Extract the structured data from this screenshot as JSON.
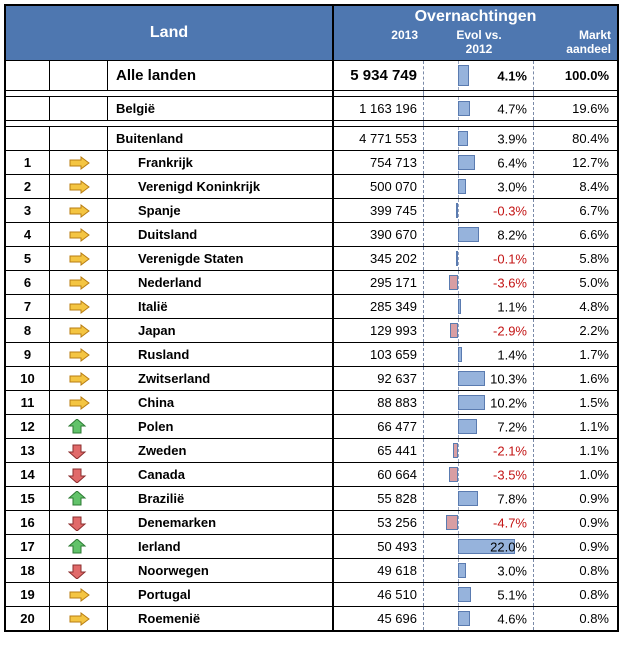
{
  "header": {
    "land": "Land",
    "over_title": "Overnachtingen",
    "col2013": "2013",
    "colEvol_line1": "Evol vs.",
    "colEvol_line2": "2012",
    "colMkt_line1": "Markt",
    "colMkt_line2": "aandeel"
  },
  "evolAxis": {
    "centerPx": 34,
    "pxPerPct": 2.6
  },
  "summary": [
    {
      "name": "Alle landen",
      "v2013": "5 934 749",
      "evol": 4.1,
      "mkt": "100.0%",
      "bold": true,
      "tall": true
    },
    {
      "name": "België",
      "v2013": "1 163 196",
      "evol": 4.7,
      "mkt": "19.6%"
    },
    {
      "name": "Buitenland",
      "v2013": "4 771 553",
      "evol": 3.9,
      "mkt": "80.4%"
    }
  ],
  "rows": [
    {
      "rank": 1,
      "trend": "same",
      "name": "Frankrijk",
      "v2013": "754 713",
      "evol": 6.4,
      "mkt": "12.7%"
    },
    {
      "rank": 2,
      "trend": "same",
      "name": "Verenigd Koninkrijk",
      "v2013": "500 070",
      "evol": 3.0,
      "mkt": "8.4%"
    },
    {
      "rank": 3,
      "trend": "same",
      "name": "Spanje",
      "v2013": "399 745",
      "evol": -0.3,
      "mkt": "6.7%"
    },
    {
      "rank": 4,
      "trend": "same",
      "name": "Duitsland",
      "v2013": "390 670",
      "evol": 8.2,
      "mkt": "6.6%"
    },
    {
      "rank": 5,
      "trend": "same",
      "name": "Verenigde Staten",
      "v2013": "345 202",
      "evol": -0.1,
      "mkt": "5.8%"
    },
    {
      "rank": 6,
      "trend": "same",
      "name": "Nederland",
      "v2013": "295 171",
      "evol": -3.6,
      "mkt": "5.0%"
    },
    {
      "rank": 7,
      "trend": "same",
      "name": "Italië",
      "v2013": "285 349",
      "evol": 1.1,
      "mkt": "4.8%"
    },
    {
      "rank": 8,
      "trend": "same",
      "name": "Japan",
      "v2013": "129 993",
      "evol": -2.9,
      "mkt": "2.2%"
    },
    {
      "rank": 9,
      "trend": "same",
      "name": "Rusland",
      "v2013": "103 659",
      "evol": 1.4,
      "mkt": "1.7%"
    },
    {
      "rank": 10,
      "trend": "same",
      "name": "Zwitserland",
      "v2013": "92 637",
      "evol": 10.3,
      "mkt": "1.6%"
    },
    {
      "rank": 11,
      "trend": "same",
      "name": "China",
      "v2013": "88 883",
      "evol": 10.2,
      "mkt": "1.5%"
    },
    {
      "rank": 12,
      "trend": "up",
      "name": "Polen",
      "v2013": "66 477",
      "evol": 7.2,
      "mkt": "1.1%"
    },
    {
      "rank": 13,
      "trend": "down",
      "name": "Zweden",
      "v2013": "65 441",
      "evol": -2.1,
      "mkt": "1.1%"
    },
    {
      "rank": 14,
      "trend": "down",
      "name": "Canada",
      "v2013": "60 664",
      "evol": -3.5,
      "mkt": "1.0%"
    },
    {
      "rank": 15,
      "trend": "up",
      "name": "Brazilië",
      "v2013": "55 828",
      "evol": 7.8,
      "mkt": "0.9%"
    },
    {
      "rank": 16,
      "trend": "down",
      "name": "Denemarken",
      "v2013": "53 256",
      "evol": -4.7,
      "mkt": "0.9%"
    },
    {
      "rank": 17,
      "trend": "up",
      "name": "Ierland",
      "v2013": "50 493",
      "evol": 22.0,
      "mkt": "0.9%"
    },
    {
      "rank": 18,
      "trend": "down",
      "name": "Noorwegen",
      "v2013": "49 618",
      "evol": 3.0,
      "mkt": "0.8%"
    },
    {
      "rank": 19,
      "trend": "same",
      "name": "Portugal",
      "v2013": "46 510",
      "evol": 5.1,
      "mkt": "0.8%"
    },
    {
      "rank": 20,
      "trend": "same",
      "name": "Roemenië",
      "v2013": "45 696",
      "evol": 4.6,
      "mkt": "0.8%"
    }
  ],
  "icons": {
    "same": {
      "fill": "#f4c542",
      "stroke": "#b87d12"
    },
    "up": {
      "fill": "#62c36a",
      "stroke": "#2c7a33"
    },
    "down": {
      "fill": "#e16a6a",
      "stroke": "#8b2e2e"
    }
  }
}
